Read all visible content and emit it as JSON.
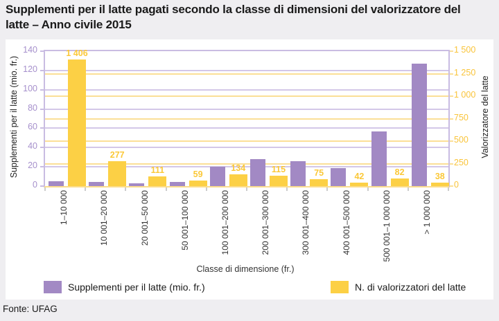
{
  "title": "Supplementi per il latte pagati secondo la classe di dimensioni del valorizzatore del\nlatte – Anno civile 2015",
  "footer": {
    "source_label": "Fonte: UFAG"
  },
  "colors": {
    "purple": "#a289c4",
    "yellow": "#fcd045",
    "grid_purple": "#d3c7e8",
    "grid_yellow": "#fbdf96",
    "frame_purple": "#c9bce2",
    "frame_bottom_yellow": "#fbdd8d",
    "axis_left_text": "#a690cc",
    "axis_right_text": "#f9c43a",
    "value_label_text": "#fbc838",
    "xtick_mark": "#cccccc"
  },
  "legend": {
    "items": [
      {
        "label": "Supplementi per il latte (mio. fr.)",
        "color_key": "purple"
      },
      {
        "label": "N. di valorizzatori del latte",
        "color_key": "yellow"
      }
    ]
  },
  "chart_data": {
    "type": "bar",
    "title": "Supplementi per il latte pagati secondo la classe di dimensioni del valorizzatore del latte – Anno civile 2015",
    "categories": [
      "1–10 000",
      "10 001–20 000",
      "20 001–50 000",
      "50 001–100 000",
      "100 001–200 000",
      "200 001–300 000",
      "300 001–400 000",
      "400 001–500 000",
      "500 001–1 000 000",
      "> 1 000 000"
    ],
    "series": [
      {
        "name": "Supplementi per il latte (mio. fr.)",
        "axis": "left",
        "color_key": "purple",
        "values": [
          5,
          4,
          3,
          4,
          20,
          28,
          26,
          19,
          57,
          127
        ]
      },
      {
        "name": "N. di valorizzatori del latte",
        "axis": "right",
        "color_key": "yellow",
        "values": [
          1406,
          277,
          111,
          59,
          134,
          115,
          75,
          42,
          82,
          38
        ],
        "value_labels": [
          "1 406",
          "277",
          "111",
          "59",
          "134",
          "115",
          "75",
          "42",
          "82",
          "38"
        ]
      }
    ],
    "xlabel": "Classe di dimensione (fr.)",
    "ylabel_left": "Supplementi per il latte (mio. fr.)",
    "ylabel_right": "Valorizzatore del latte",
    "ylim_left": [
      0,
      140
    ],
    "ylim_right": [
      0,
      1500
    ],
    "yticks_left": [
      "0",
      "20",
      "40",
      "60",
      "80",
      "100",
      "120",
      "140"
    ],
    "yticks_right": [
      "0",
      "250",
      "500",
      "750",
      "1 000",
      "1 250",
      "1 500"
    ],
    "grid": true,
    "legend_position": "bottom"
  }
}
